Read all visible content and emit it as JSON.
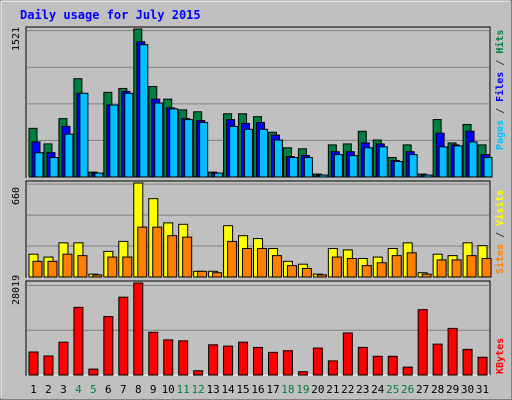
{
  "chart_data": {
    "type": "bar",
    "title": "Daily usage for July 2015",
    "categories": [
      "1",
      "2",
      "3",
      "4",
      "5",
      "6",
      "7",
      "8",
      "9",
      "10",
      "11",
      "12",
      "13",
      "14",
      "15",
      "16",
      "17",
      "18",
      "19",
      "20",
      "21",
      "22",
      "23",
      "24",
      "25",
      "26",
      "27",
      "28",
      "29",
      "30",
      "31"
    ],
    "weekend_days": [
      "4",
      "5",
      "11",
      "12",
      "18",
      "19",
      "25",
      "26"
    ],
    "panels": [
      {
        "name": "hits-files-pages",
        "max_label": "1521",
        "ylim": [
          0,
          1521
        ],
        "series": [
          {
            "name": "Hits",
            "color": "#008040",
            "values": [
              500,
              340,
              600,
              1010,
              50,
              870,
              910,
              1521,
              930,
              800,
              690,
              670,
              50,
              650,
              650,
              620,
              460,
              300,
              290,
              30,
              330,
              340,
              470,
              380,
              200,
              330,
              30,
              590,
              350,
              540,
              330
            ]
          },
          {
            "name": "Files",
            "color": "#0000ff",
            "values": [
              360,
              250,
              520,
              860,
              40,
              740,
              880,
              1390,
              800,
              710,
              600,
              580,
              40,
              590,
              550,
              560,
              430,
              210,
              220,
              20,
              260,
              260,
              350,
              340,
              170,
              260,
              20,
              450,
              330,
              470,
              230
            ]
          },
          {
            "name": "Pages",
            "color": "#00c0ff",
            "values": [
              250,
              200,
              440,
              860,
              40,
              740,
              860,
              1360,
              760,
              700,
              590,
              560,
              40,
              520,
              490,
              490,
              380,
              200,
              200,
              20,
              230,
              220,
              300,
              310,
              160,
              230,
              20,
              310,
              320,
              360,
              200
            ]
          }
        ],
        "legend": [
          "Pages",
          "/",
          "Files",
          "/",
          "Hits"
        ],
        "legend_colors": [
          "#00c0ff",
          "#404040",
          "#0000ff",
          "#404040",
          "#008040"
        ]
      },
      {
        "name": "visits-sites",
        "max_label": "660",
        "ylim": [
          0,
          660
        ],
        "series": [
          {
            "name": "Visits",
            "color": "#ffff00",
            "values": [
              160,
              140,
              240,
              240,
              20,
              180,
              250,
              660,
              550,
              380,
              370,
              40,
              40,
              360,
              290,
              270,
              200,
              110,
              90,
              20,
              200,
              190,
              130,
              140,
              200,
              240,
              30,
              160,
              150,
              240,
              220
            ]
          },
          {
            "name": "Sites",
            "color": "#ff8000",
            "values": [
              110,
              110,
              160,
              150,
              15,
              140,
              140,
              350,
              350,
              290,
              280,
              40,
              30,
              250,
              200,
              200,
              150,
              80,
              60,
              15,
              140,
              130,
              80,
              100,
              150,
              170,
              20,
              120,
              120,
              150,
              130
            ]
          }
        ],
        "legend": [
          "Sites",
          "/",
          "Visits"
        ],
        "legend_colors": [
          "#ff8000",
          "#404040",
          "#ffff00"
        ]
      },
      {
        "name": "kbytes",
        "max_label": "28019",
        "ylim": [
          0,
          28019
        ],
        "series": [
          {
            "name": "KBytes",
            "color": "#ff0000",
            "values": [
              7000,
              5800,
              10000,
              20600,
              1800,
              17800,
              23700,
              28019,
              13000,
              10700,
              10400,
              1300,
              9200,
              8800,
              10000,
              8400,
              6900,
              7400,
              1000,
              8200,
              4300,
              12800,
              8400,
              5700,
              5700,
              2400,
              19900,
              9400,
              14200,
              7800,
              5400
            ]
          }
        ],
        "legend": [
          "KBytes"
        ],
        "legend_colors": [
          "#ff0000"
        ]
      }
    ],
    "colors": {
      "background": "#c0c0c0",
      "plot_background": "#c0c0c0",
      "title": "#0000ff",
      "weekday_label": "#000000",
      "weekend_label": "#008040",
      "gridline": "#808080"
    }
  }
}
